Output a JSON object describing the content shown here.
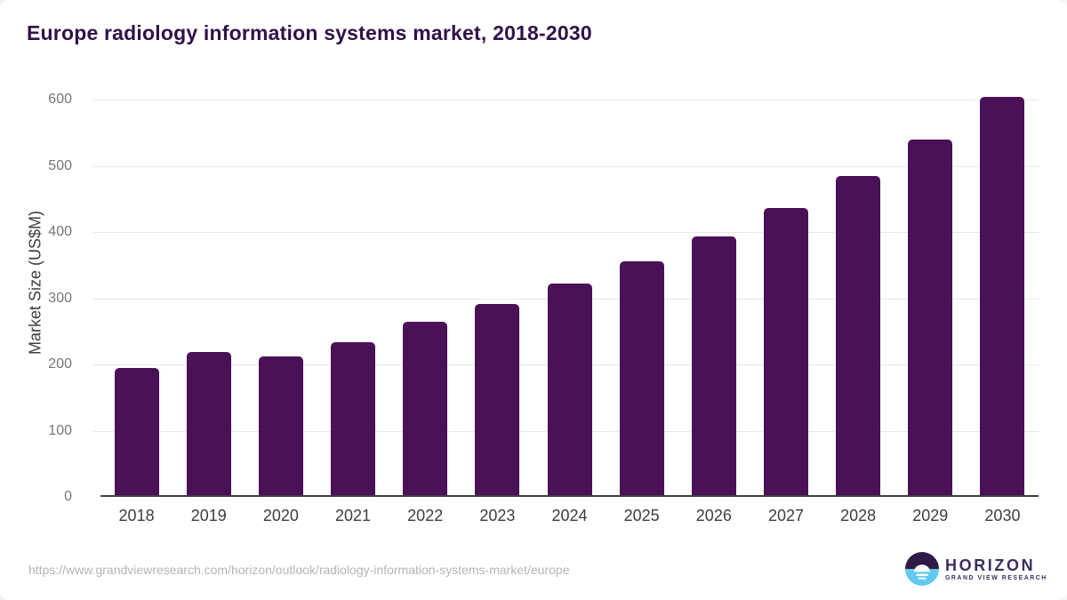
{
  "title": "Europe radiology information systems market, 2018-2030",
  "chart_data": {
    "type": "bar",
    "title": "Europe radiology information systems market, 2018-2030",
    "categories": [
      "2018",
      "2019",
      "2020",
      "2021",
      "2022",
      "2023",
      "2024",
      "2025",
      "2026",
      "2027",
      "2028",
      "2029",
      "2030"
    ],
    "values": [
      192,
      216,
      209,
      231,
      262,
      289,
      320,
      353,
      390,
      434,
      482,
      537,
      601
    ],
    "xlabel": "",
    "ylabel": "Market Size (US$M)",
    "ylim": [
      0,
      600
    ],
    "yticks": [
      0,
      100,
      200,
      300,
      400,
      500,
      600
    ],
    "grid": true,
    "legend": false,
    "bar_color": "#4a1157"
  },
  "footer": {
    "source_url": "https://www.grandviewresearch.com/horizon/outlook/radiology-information-systems-market/europe",
    "logo": {
      "name": "HORIZON",
      "subtitle": "GRAND VIEW RESEARCH"
    }
  },
  "colors": {
    "bar": "#4a1157",
    "title_text": "#311148",
    "gridline": "#e7e7e7",
    "axis_line": "#3f3f3f",
    "tick_label": "#767676",
    "category_label": "#3d3d3d",
    "url_text": "#b4b4b4",
    "logo_dark": "#2e1a47",
    "logo_blue": "#62c9f3",
    "logo_text": "#3b2d5e"
  }
}
